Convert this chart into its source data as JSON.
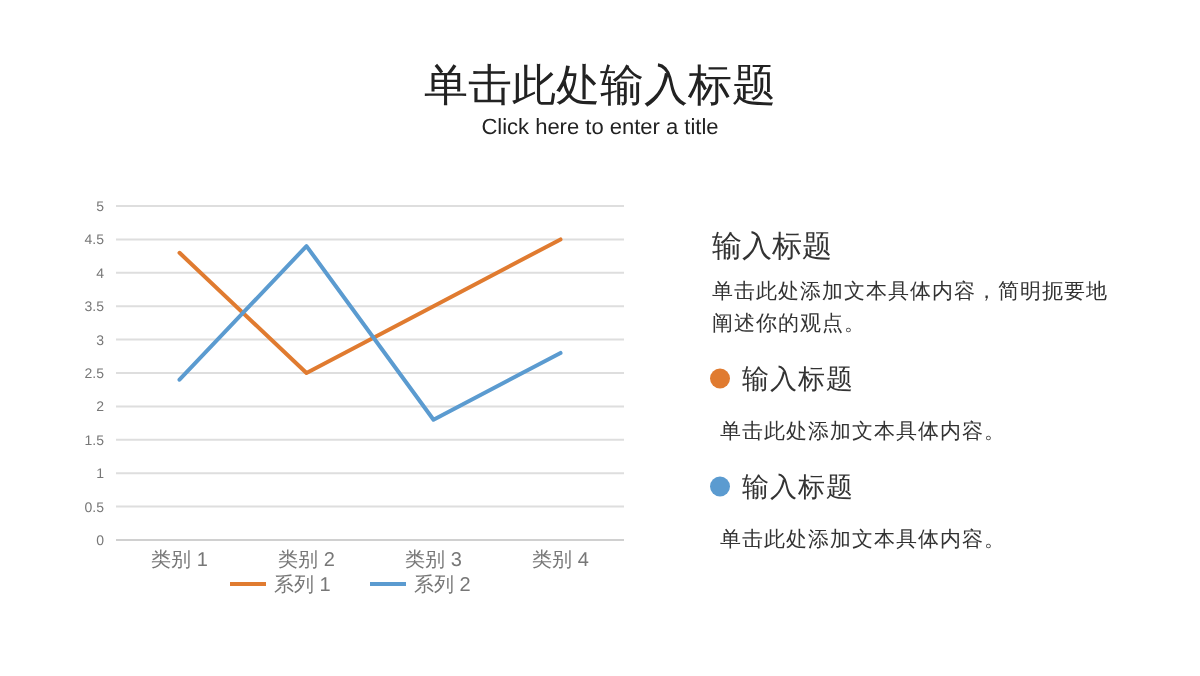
{
  "chart_data": {
    "type": "line",
    "title": "单击此处输入标题",
    "subtitle": "Click here to enter a title",
    "categories": [
      "类别 1",
      "类别 2",
      "类别 3",
      "类别 4"
    ],
    "series": [
      {
        "name": "系列 1",
        "color": "#e07b30",
        "values": [
          4.3,
          2.5,
          3.5,
          4.5
        ]
      },
      {
        "name": "系列 2",
        "color": "#5b9bd0",
        "values": [
          2.4,
          4.4,
          1.8,
          2.8
        ]
      }
    ],
    "ylim": [
      0,
      5
    ],
    "yticks": [
      0,
      0.5,
      1,
      1.5,
      2,
      2.5,
      3,
      3.5,
      4,
      4.5,
      5
    ],
    "grid": "y",
    "legend": "bottom",
    "marker": "none",
    "line_style": "solid",
    "annotations": [
      "输入标题",
      "单击此处添加文本具体内容，简明扼要地阐述你的观点。",
      "输入标题",
      "单击此处添加文本具体内容。",
      "输入标题",
      "单击此处添加文本具体内容。"
    ]
  }
}
